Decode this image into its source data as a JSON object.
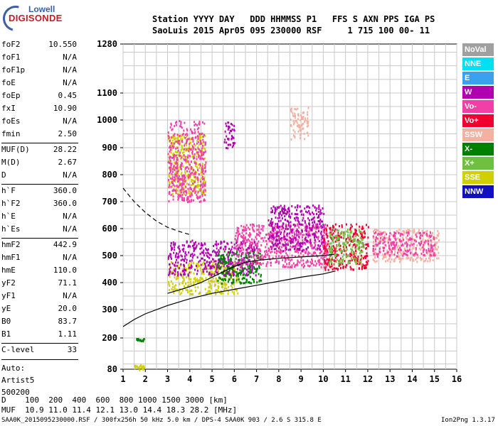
{
  "logo": {
    "line1": "Lowell",
    "line2": "DIGISONDE"
  },
  "header": {
    "row1": "Station YYYY DAY   DDD HHMMSS P1   FFS S AXN PPS IGA PS",
    "row2": "SaoLuis 2015 Apr05 095 230000 RSF     1 715 100 00- 11"
  },
  "params": [
    {
      "k": "foF2",
      "v": "10.550"
    },
    {
      "k": "foF1",
      "v": "N/A"
    },
    {
      "k": "foF1p",
      "v": "N/A"
    },
    {
      "k": "foE",
      "v": "N/A"
    },
    {
      "k": "foEp",
      "v": "0.45"
    },
    {
      "k": "fxI",
      "v": "10.90"
    },
    {
      "k": "foEs",
      "v": "N/A"
    },
    {
      "k": "fmin",
      "v": "2.50"
    },
    {
      "k": "MUF(D)",
      "v": "28.22"
    },
    {
      "k": "M(D)",
      "v": "2.67"
    },
    {
      "k": "D",
      "v": "N/A"
    },
    {
      "k": "h`F",
      "v": "360.0"
    },
    {
      "k": "h`F2",
      "v": "360.0"
    },
    {
      "k": "h`E",
      "v": "N/A"
    },
    {
      "k": "h`Es",
      "v": "N/A"
    },
    {
      "k": "hmF2",
      "v": "442.9"
    },
    {
      "k": "hmF1",
      "v": "N/A"
    },
    {
      "k": "hmE",
      "v": "110.0"
    },
    {
      "k": "yF2",
      "v": "71.1"
    },
    {
      "k": "yF1",
      "v": "N/A"
    },
    {
      "k": "yE",
      "v": "20.0"
    },
    {
      "k": "B0",
      "v": "83.7"
    },
    {
      "k": "B1",
      "v": "1.11"
    },
    {
      "k": "C-level",
      "v": "33"
    }
  ],
  "auto": {
    "l1": "Auto:",
    "l2": "Artist5",
    "l3": "500200"
  },
  "legend": [
    {
      "label": "NoVal",
      "color": "#a0a0a0"
    },
    {
      "label": "NNE",
      "color": "#00e0f0"
    },
    {
      "label": "E",
      "color": "#3aa0f0"
    },
    {
      "label": "W",
      "color": "#b000b0"
    },
    {
      "label": "Vo-",
      "color": "#f040a8"
    },
    {
      "label": "Vo+",
      "color": "#f00030"
    },
    {
      "label": "SSW",
      "color": "#f4b0a0"
    },
    {
      "label": "X-",
      "color": "#008000"
    },
    {
      "label": "X+",
      "color": "#70c040"
    },
    {
      "label": "SSE",
      "color": "#d0d000"
    },
    {
      "label": "NNW",
      "color": "#1010c0"
    }
  ],
  "footer": {
    "d_row": "D    100  200  400  600  800 1000 1500 3000 [km]",
    "muf_row": "MUF  10.9 11.0 11.4 12.1 13.0 14.4 18.3 28.2 [MHz]",
    "file_row": "SAA0K_2015095230000.RSF / 300fx256h 50 kHz 5.0 km / DPS-4 SAA0K 903 / 2.6 S 315.8 E",
    "version": "Ion2Png 1.3.17"
  },
  "chart_data": {
    "type": "scatter",
    "xlim": [
      1,
      16
    ],
    "ylim": [
      80,
      1280
    ],
    "xticks": [
      1,
      2,
      3,
      4,
      5,
      6,
      7,
      8,
      9,
      10,
      11,
      12,
      13,
      14,
      15,
      16
    ],
    "yticks": [
      80,
      200,
      300,
      400,
      500,
      600,
      700,
      800,
      900,
      1000,
      1100,
      1280
    ],
    "y_scale": "nonlinear-ionogram",
    "grid": true,
    "profile_curve": [
      [
        1.0,
        240
      ],
      [
        1.5,
        265
      ],
      [
        2.0,
        285
      ],
      [
        3.0,
        315
      ],
      [
        4.0,
        340
      ],
      [
        5.0,
        360
      ],
      [
        6.0,
        375
      ],
      [
        7.0,
        390
      ],
      [
        8.0,
        405
      ],
      [
        9.0,
        420
      ],
      [
        10.0,
        432
      ],
      [
        10.55,
        443
      ]
    ],
    "dashed_curve": [
      [
        1.0,
        750
      ],
      [
        1.5,
        700
      ],
      [
        2.0,
        660
      ],
      [
        2.5,
        628
      ],
      [
        3.0,
        605
      ],
      [
        3.5,
        590
      ],
      [
        4.0,
        578
      ]
    ],
    "trace_curve": [
      [
        3.0,
        360
      ],
      [
        3.5,
        372
      ],
      [
        4.0,
        385
      ],
      [
        4.5,
        400
      ],
      [
        5.0,
        420
      ],
      [
        5.5,
        440
      ],
      [
        6.0,
        460
      ],
      [
        6.5,
        475
      ],
      [
        7.0,
        482
      ],
      [
        8.0,
        490
      ],
      [
        9.0,
        495
      ],
      [
        10.0,
        500
      ],
      [
        10.5,
        505
      ]
    ],
    "echo_clusters": [
      {
        "x": [
          3.0,
          6.2
        ],
        "y": [
          360,
          480
        ],
        "color": "#d0d000"
      },
      {
        "x": [
          3.0,
          7.0
        ],
        "y": [
          430,
          560
        ],
        "color": "#b000b0"
      },
      {
        "x": [
          5.2,
          7.2
        ],
        "y": [
          400,
          520
        ],
        "color": "#008000"
      },
      {
        "x": [
          6.0,
          10.2
        ],
        "y": [
          460,
          620
        ],
        "color": "#f040a8"
      },
      {
        "x": [
          7.5,
          10.0
        ],
        "y": [
          520,
          690
        ],
        "color": "#b000b0"
      },
      {
        "x": [
          10.0,
          12.0
        ],
        "y": [
          450,
          620
        ],
        "color": "#f00030"
      },
      {
        "x": [
          10.2,
          11.8
        ],
        "y": [
          470,
          600
        ],
        "color": "#70c040"
      },
      {
        "x": [
          12.2,
          15.2
        ],
        "y": [
          480,
          600
        ],
        "color": "#f4b0a0"
      },
      {
        "x": [
          12.2,
          15.0
        ],
        "y": [
          500,
          590
        ],
        "color": "#f040a8"
      },
      {
        "x": [
          3.0,
          4.7
        ],
        "y": [
          730,
          950
        ],
        "color": "#d0d000"
      },
      {
        "x": [
          3.0,
          4.7
        ],
        "y": [
          700,
          1000
        ],
        "color": "#f040a8"
      },
      {
        "x": [
          5.5,
          6.0
        ],
        "y": [
          900,
          1000
        ],
        "color": "#b000b0"
      },
      {
        "x": [
          8.5,
          9.3
        ],
        "y": [
          930,
          1050
        ],
        "color": "#f4b0a0"
      },
      {
        "x": [
          1.5,
          2.0
        ],
        "y": [
          80,
          100
        ],
        "color": "#d0d000"
      },
      {
        "x": [
          1.5,
          2.0
        ],
        "y": [
          190,
          200
        ],
        "color": "#008000"
      }
    ]
  }
}
